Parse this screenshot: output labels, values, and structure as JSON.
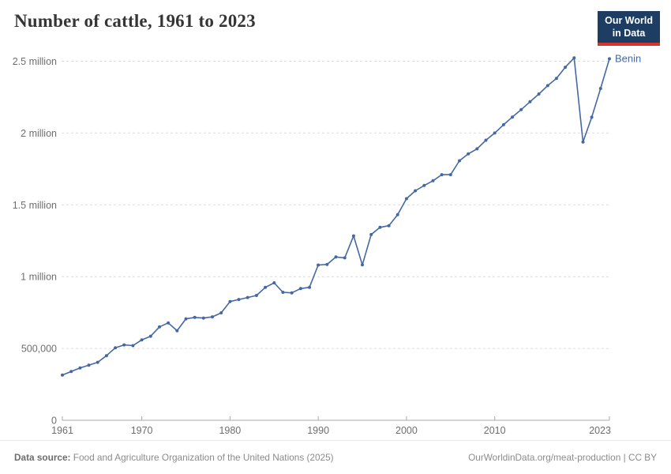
{
  "header": {
    "title": "Number of cattle, 1961 to 2023",
    "logo": {
      "line1": "Our World",
      "line2": "in Data",
      "bg_color": "#1d3d63",
      "accent_color": "#d6352c"
    }
  },
  "chart_data": {
    "type": "line",
    "title": "Number of cattle, 1961 to 2023",
    "xlabel": "",
    "ylabel": "",
    "xlim": [
      1961,
      2023
    ],
    "ylim": [
      0,
      2500000
    ],
    "grid": "horizontal-dashed",
    "legend_position": "end-of-line-label",
    "x_ticks": [
      1961,
      1970,
      1980,
      1990,
      2000,
      2010,
      2023
    ],
    "y_ticks": [
      {
        "value": 0,
        "label": "0"
      },
      {
        "value": 500000,
        "label": "500,000"
      },
      {
        "value": 1000000,
        "label": "1 million"
      },
      {
        "value": 1500000,
        "label": "1.5 million"
      },
      {
        "value": 2000000,
        "label": "2 million"
      },
      {
        "value": 2500000,
        "label": "2.5 million"
      }
    ],
    "series": [
      {
        "name": "Benin",
        "color": "#4568a5",
        "x": [
          1961,
          1962,
          1963,
          1964,
          1965,
          1966,
          1967,
          1968,
          1969,
          1970,
          1971,
          1972,
          1973,
          1974,
          1975,
          1976,
          1977,
          1978,
          1979,
          1980,
          1981,
          1982,
          1983,
          1984,
          1985,
          1986,
          1987,
          1988,
          1989,
          1990,
          1991,
          1992,
          1993,
          1994,
          1995,
          1996,
          1997,
          1998,
          1999,
          2000,
          2001,
          2002,
          2003,
          2004,
          2005,
          2006,
          2007,
          2008,
          2009,
          2010,
          2011,
          2012,
          2013,
          2014,
          2015,
          2016,
          2017,
          2018,
          2019,
          2020,
          2021,
          2022,
          2023
        ],
        "values": [
          315000,
          340000,
          364000,
          384000,
          404000,
          450000,
          505000,
          525000,
          520000,
          560000,
          585000,
          650000,
          678000,
          624000,
          706000,
          716000,
          712000,
          720000,
          748000,
          827000,
          841000,
          855000,
          869000,
          925000,
          957000,
          891000,
          887000,
          917000,
          926000,
          1081000,
          1085000,
          1137000,
          1131000,
          1284000,
          1082000,
          1293000,
          1343000,
          1355000,
          1431000,
          1543000,
          1598000,
          1635000,
          1668000,
          1710000,
          1710000,
          1807000,
          1855000,
          1890000,
          1950000,
          2000000,
          2058000,
          2111000,
          2163000,
          2218000,
          2272000,
          2330000,
          2380000,
          2458000,
          2523000,
          1938000,
          2110000,
          2310000,
          2517000
        ]
      }
    ],
    "styles": {
      "grid_color": "#dcdcdc",
      "axis_color": "#a8a8a8",
      "tick_label_color": "#6e6e6e"
    }
  },
  "footer": {
    "data_source_label": "Data source:",
    "data_source": "Food and Agriculture Organization of the United Nations (2025)",
    "link": "OurWorldinData.org/meat-production",
    "license": "CC BY",
    "separator": "|"
  }
}
